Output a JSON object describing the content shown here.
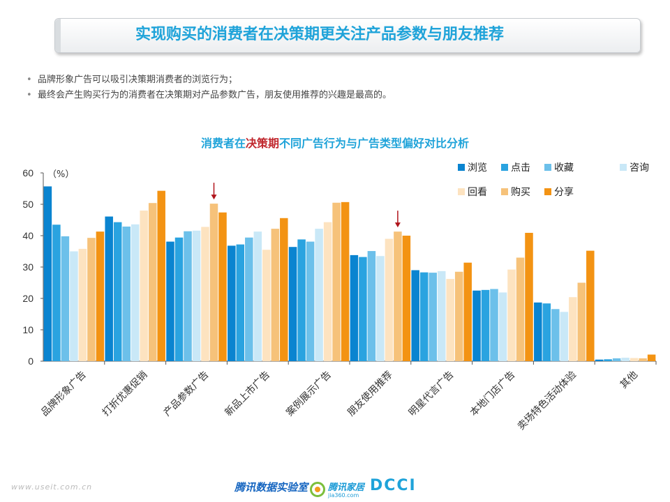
{
  "header": {
    "title": "实现购买的消费者在决策期更关注产品参数与朋友推荐"
  },
  "bullets": [
    "品牌形象广告可以吸引决策期消费者的浏览行为；",
    "最终会产生购买行为的消费者在决策期对产品参数广告，朋友使用推荐的兴趣是最高的。"
  ],
  "chart_title": {
    "part1": "消费者在",
    "highlight": "决策期",
    "part2": "不同广告行为与广告类型偏好对比分析"
  },
  "chart_data": {
    "type": "bar",
    "unit_label": "（%）",
    "ylim": [
      0,
      60
    ],
    "yticks": [
      0,
      10,
      20,
      30,
      40,
      50,
      60
    ],
    "grid": false,
    "legend_position": "top-right",
    "categories": [
      "品牌形象广告",
      "打折优惠促销",
      "产品参数广告",
      "新品上市广告",
      "案例展示广告",
      "朋友使用推荐",
      "明星代言广告",
      "本地门店广告",
      "卖场特色活动体验",
      "其他"
    ],
    "series": [
      {
        "name": "浏览",
        "color": "#0a84d0",
        "values": [
          55.7,
          46.1,
          38.1,
          36.8,
          36.4,
          33.8,
          29.0,
          22.5,
          18.7,
          0.5
        ]
      },
      {
        "name": "点击",
        "color": "#2aa3e0",
        "values": [
          43.5,
          44.3,
          39.4,
          37.2,
          38.8,
          33.2,
          28.3,
          22.7,
          18.4,
          0.6
        ]
      },
      {
        "name": "收藏",
        "color": "#6cc0ea",
        "values": [
          39.8,
          42.9,
          41.4,
          39.4,
          38.1,
          35.1,
          28.2,
          23.0,
          16.6,
          0.9
        ]
      },
      {
        "name": "咨询",
        "color": "#c9e8f7",
        "values": [
          35.0,
          43.6,
          41.6,
          41.3,
          42.2,
          33.5,
          28.7,
          21.9,
          15.7,
          1.1
        ]
      },
      {
        "name": "回看",
        "color": "#fde3c0",
        "values": [
          35.8,
          48.0,
          42.8,
          35.5,
          44.3,
          39.0,
          26.2,
          29.2,
          20.4,
          1.0
        ]
      },
      {
        "name": "购买",
        "color": "#f6c27a",
        "values": [
          39.3,
          50.4,
          50.2,
          42.2,
          50.5,
          41.3,
          28.5,
          33.0,
          25.0,
          0.9
        ]
      },
      {
        "name": "分享",
        "color": "#f39313",
        "values": [
          41.3,
          54.3,
          47.4,
          45.6,
          50.7,
          40.0,
          31.4,
          40.9,
          35.2,
          2.1
        ]
      }
    ],
    "annotations": [
      {
        "type": "arrow",
        "category": "产品参数广告",
        "series": "购买"
      },
      {
        "type": "arrow",
        "category": "朋友使用推荐",
        "series": "购买"
      }
    ]
  },
  "footer": {
    "url": "www.useit.com.cn",
    "brand": "腾讯数据实验室",
    "home_name": "腾讯家居",
    "home_sub": "jia360.com",
    "dcci": "DCCI"
  }
}
